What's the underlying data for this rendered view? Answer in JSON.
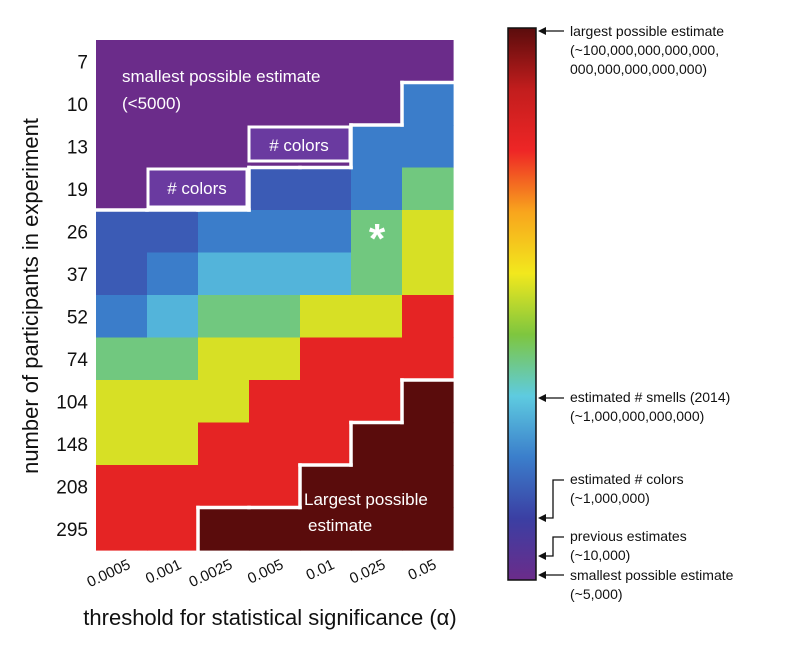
{
  "chart_data": {
    "type": "heatmap",
    "xlabel": "threshold for statistical significance (α)",
    "ylabel": "number of participants in experiment",
    "x_categories": [
      "0.0005",
      "0.001",
      "0.0025",
      "0.005",
      "0.01",
      "0.025",
      "0.05"
    ],
    "y_categories": [
      "7",
      "10",
      "13",
      "19",
      "26",
      "37",
      "52",
      "74",
      "104",
      "148",
      "208",
      "295"
    ],
    "value_scale": "log10 estimate (3.7 = ~5,000 … 30 = ~10^30)",
    "color_scale_note": "value on 0-1 colorbar position (0 = smallest, 1 = largest)",
    "cells": [
      [
        0.0,
        0.0,
        0.0,
        0.0,
        0.0,
        0.0,
        0.0
      ],
      [
        0.0,
        0.0,
        0.0,
        0.0,
        0.0,
        0.0,
        0.22
      ],
      [
        0.0,
        0.0,
        0.0,
        0.0,
        0.0,
        0.22,
        0.22
      ],
      [
        0.0,
        0.0,
        0.0,
        0.16,
        0.16,
        0.22,
        0.4
      ],
      [
        0.16,
        0.16,
        0.22,
        0.22,
        0.22,
        0.4,
        0.53
      ],
      [
        0.16,
        0.22,
        0.3,
        0.3,
        0.3,
        0.4,
        0.53
      ],
      [
        0.22,
        0.3,
        0.4,
        0.4,
        0.53,
        0.53,
        0.8
      ],
      [
        0.4,
        0.4,
        0.53,
        0.53,
        0.8,
        0.8,
        0.8
      ],
      [
        0.53,
        0.53,
        0.53,
        0.8,
        0.8,
        0.8,
        1.0
      ],
      [
        0.53,
        0.53,
        0.8,
        0.8,
        0.8,
        1.0,
        1.0
      ],
      [
        0.8,
        0.8,
        0.8,
        0.8,
        1.0,
        1.0,
        1.0
      ],
      [
        0.8,
        0.8,
        1.0,
        1.0,
        1.0,
        1.0,
        1.0
      ]
    ],
    "annotations": {
      "smallest_region": [
        "smallest possible estimate",
        "(<5000)"
      ],
      "colors_label_1": "# colors",
      "colors_label_2": "# colors",
      "largest_region": [
        "Largest possible",
        "estimate"
      ],
      "asterisk": "*"
    },
    "colorbar": {
      "gradient_colors": [
        "#6b2c8a",
        "#3b3fa3",
        "#3b7ecb",
        "#5ecbe0",
        "#7ec63f",
        "#f2e81d",
        "#f8a51d",
        "#ee2626",
        "#c21d1d",
        "#5a0c0c"
      ],
      "entries": [
        {
          "label": [
            "largest possible estimate",
            "(~100,000,000,000,000,",
            "000,000,000,000,000)"
          ],
          "position": 1.0
        },
        {
          "label": [
            "estimated # smells (2014)",
            "(~1,000,000,000,000)"
          ],
          "position": 0.44
        },
        {
          "label": [
            "estimated # colors",
            "(~1,000,000)"
          ],
          "position": 0.17
        },
        {
          "label": [
            "previous estimates",
            "(~10,000)"
          ],
          "position": 0.07
        },
        {
          "label": [
            "smallest possible estimate",
            "(~5,000)"
          ],
          "position": 0.0
        }
      ]
    }
  }
}
